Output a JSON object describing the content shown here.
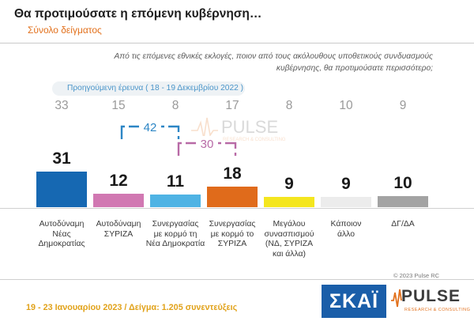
{
  "header": {
    "title": "Θα προτιμούσατε η επόμενη κυβέρνηση…",
    "subtitle": "Σύνολο δείγματος"
  },
  "question": {
    "line1": "Από τις επόμενες εθνικές εκλογές, ποιον από τους ακόλουθους υποθετικούς συνδυασμούς",
    "line2": "κυβέρνησης, θα προτιμούσατε περισσότερο;"
  },
  "previous_caption": "Προηγούμενη έρευνα  ( 18 - 19 Δεκεμβρίου  2022 )",
  "chart_data": {
    "type": "bar",
    "categories": [
      [
        "Αυτοδύναμη",
        "Νέας",
        "Δημοκρατίας"
      ],
      [
        "Αυτοδύναμη",
        "ΣΥΡΙΖΑ"
      ],
      [
        "Συνεργασίας",
        "με κορμό τη",
        "Νέα Δημοκρατία"
      ],
      [
        "Συνεργασίας",
        "με κορμό το",
        "ΣΥΡΙΖΑ"
      ],
      [
        "Μεγάλου",
        "συνασπισμού",
        "(ΝΔ, ΣΥΡΙΖΑ",
        "και άλλα)"
      ],
      [
        "Κάποιον",
        "άλλο"
      ],
      [
        "ΔΓ/ΔΑ"
      ]
    ],
    "series": [
      {
        "name": "",
        "values": [
          31,
          12,
          11,
          18,
          9,
          9,
          10
        ]
      }
    ],
    "previous_values": [
      33,
      15,
      8,
      17,
      8,
      10,
      9
    ],
    "bar_colors": [
      "#1668b2",
      "#d178b2",
      "#4fb3e4",
      "#e06b1b",
      "#f4e61f",
      "#ececec",
      "#a3a3a3"
    ],
    "brackets": [
      {
        "label": "42",
        "from": 1,
        "to": 2,
        "color": "#2d86c5"
      },
      {
        "label": "30",
        "from": 2,
        "to": 3,
        "color": "#b86aa6"
      }
    ],
    "ylim": [
      0,
      35
    ]
  },
  "watermark": {
    "word": "PULSE",
    "sub": "RESEARCH & CONSULTING"
  },
  "footer": {
    "copyright": "© 2023 Pulse RC",
    "fieldwork": "19 - 23  Ιανουαρίου  2023  /  Δείγμα:  1.205  συνεντεύξεις",
    "logo_skai": "ΣΚΑΪ",
    "logo_pulse": "PULSE",
    "logo_pulse_sub": "RESEARCH & CONSULTING"
  }
}
